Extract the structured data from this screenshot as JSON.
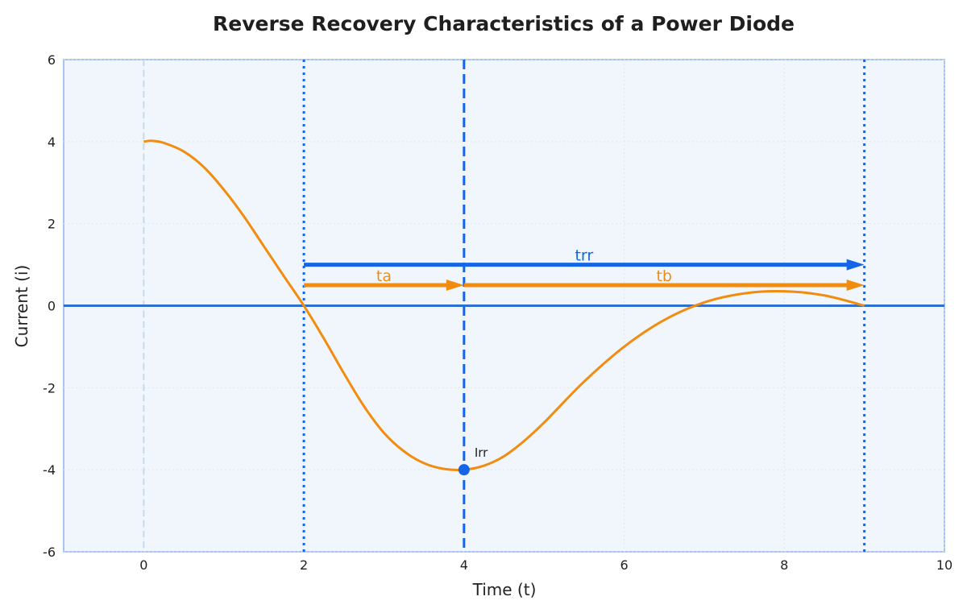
{
  "chart_data": {
    "type": "line",
    "title": "Reverse Recovery Characteristics of a Power Diode",
    "xlabel": "Time (t)",
    "ylabel": "Current (i)",
    "xlim": [
      -1,
      10
    ],
    "ylim": [
      -6,
      6
    ],
    "xticks": [
      0,
      2,
      4,
      6,
      8,
      10
    ],
    "yticks": [
      -6,
      -4,
      -2,
      0,
      2,
      4,
      6
    ],
    "grid": true,
    "series": [
      {
        "color": "#f28c0f",
        "x": [
          0,
          0.1,
          0.25,
          0.5,
          0.75,
          1,
          1.25,
          1.5,
          1.75,
          2,
          2.25,
          2.5,
          2.75,
          3,
          3.25,
          3.5,
          3.75,
          4,
          4.25,
          4.5,
          4.75,
          5,
          5.5,
          6,
          6.5,
          7,
          7.5,
          8,
          8.5,
          9
        ],
        "y": [
          4.0,
          4.02,
          3.97,
          3.76,
          3.38,
          2.83,
          2.18,
          1.45,
          0.72,
          0.0,
          -0.8,
          -1.65,
          -2.45,
          -3.1,
          -3.55,
          -3.84,
          -3.98,
          -4.0,
          -3.9,
          -3.67,
          -3.3,
          -2.85,
          -1.85,
          -1.0,
          -0.35,
          0.08,
          0.3,
          0.35,
          0.25,
          0.0
        ]
      }
    ],
    "vlines": [
      {
        "x": 0,
        "style": "dashed",
        "color": "#c3d9ec"
      },
      {
        "x": 2,
        "style": "dotted",
        "color": "#1565e8"
      },
      {
        "x": 4,
        "style": "dashed",
        "color": "#1565e8"
      },
      {
        "x": 9,
        "style": "dotted",
        "color": "#1565e8"
      }
    ],
    "hline": {
      "y": 0,
      "color": "#2f6fd1"
    },
    "arrows": [
      {
        "label": "trr",
        "x0": 2,
        "x1": 9,
        "y": 1.0,
        "color": "#1565e8"
      },
      {
        "label": "ta",
        "x0": 2,
        "x1": 4,
        "y": 0.5,
        "color": "#f28c0f"
      },
      {
        "label": "tb",
        "x0": 4,
        "x1": 9,
        "y": 0.5,
        "color": "#f28c0f"
      }
    ],
    "points": [
      {
        "label": "Irr",
        "x": 4,
        "y": -4,
        "color": "#1565e8"
      }
    ]
  }
}
